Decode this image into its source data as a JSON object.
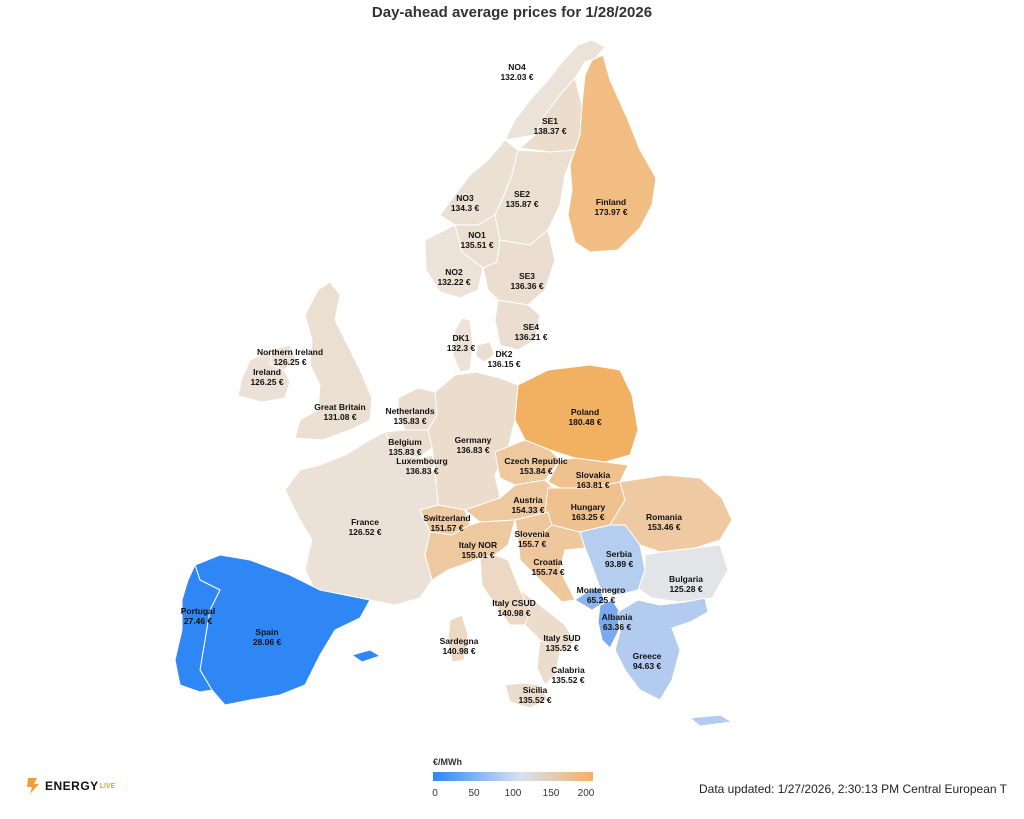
{
  "title": "Day-ahead average prices for 1/28/2026",
  "zones": [
    {
      "id": "no4",
      "name": "NO4",
      "price": "132.03 €",
      "color": "#ece3d8"
    },
    {
      "id": "se1",
      "name": "SE1",
      "price": "138.37 €",
      "color": "#ebdccb"
    },
    {
      "id": "finland",
      "name": "Finland",
      "price": "173.97 €",
      "color": "#f1bd82"
    },
    {
      "id": "no3",
      "name": "NO3",
      "price": "134.3 €",
      "color": "#ebe0d3"
    },
    {
      "id": "se2",
      "name": "SE2",
      "price": "135.87 €",
      "color": "#ebdfd1"
    },
    {
      "id": "no1",
      "name": "NO1",
      "price": "135.51 €",
      "color": "#ebdfd1"
    },
    {
      "id": "no2",
      "name": "NO2",
      "price": "132.22 €",
      "color": "#ece2d7"
    },
    {
      "id": "se3",
      "name": "SE3",
      "price": "136.36 €",
      "color": "#ebded0"
    },
    {
      "id": "se4",
      "name": "SE4",
      "price": "136.21 €",
      "color": "#ebded0"
    },
    {
      "id": "dk1",
      "name": "DK1",
      "price": "132.3 €",
      "color": "#ece2d7"
    },
    {
      "id": "dk2",
      "name": "DK2",
      "price": "136.15 €",
      "color": "#ebded0"
    },
    {
      "id": "northern-ireland",
      "name": "Northern Ireland",
      "price": "126.25 €",
      "color": "#ebe1d6"
    },
    {
      "id": "ireland",
      "name": "Ireland",
      "price": "126.25 €",
      "color": "#ebe1d6"
    },
    {
      "id": "great-britain",
      "name": "Great Britain",
      "price": "131.08 €",
      "color": "#ebdfd1"
    },
    {
      "id": "netherlands",
      "name": "Netherlands",
      "price": "135.83 €",
      "color": "#ebded0"
    },
    {
      "id": "belgium",
      "name": "Belgium",
      "price": "135.83 €",
      "color": "#ebded0"
    },
    {
      "id": "luxembourg",
      "name": "Luxembourg",
      "price": "136.83 €",
      "color": "#ebdccc"
    },
    {
      "id": "germany",
      "name": "Germany",
      "price": "136.83 €",
      "color": "#ebdccc"
    },
    {
      "id": "poland",
      "name": "Poland",
      "price": "180.48 €",
      "color": "#f2b063"
    },
    {
      "id": "czech-republic",
      "name": "Czech Republic",
      "price": "153.84 €",
      "color": "#eec89f"
    },
    {
      "id": "slovakia",
      "name": "Slovakia",
      "price": "163.81 €",
      "color": "#efc18f"
    },
    {
      "id": "austria",
      "name": "Austria",
      "price": "154.33 €",
      "color": "#eec89f"
    },
    {
      "id": "hungary",
      "name": "Hungary",
      "price": "163.25 €",
      "color": "#efc18f"
    },
    {
      "id": "romania",
      "name": "Romania",
      "price": "153.46 €",
      "color": "#eec9a1"
    },
    {
      "id": "switzerland",
      "name": "Switzerland",
      "price": "151.57 €",
      "color": "#eecaa4"
    },
    {
      "id": "france",
      "name": "France",
      "price": "126.52 €",
      "color": "#ebe1d6"
    },
    {
      "id": "italy-nor",
      "name": "Italy NOR",
      "price": "155.01 €",
      "color": "#eec89e"
    },
    {
      "id": "slovenia",
      "name": "Slovenia",
      "price": "155.7 €",
      "color": "#eec79c"
    },
    {
      "id": "croatia",
      "name": "Croatia",
      "price": "155.74 €",
      "color": "#eec79c"
    },
    {
      "id": "serbia",
      "name": "Serbia",
      "price": "93.89 €",
      "color": "#b5cdee"
    },
    {
      "id": "bulgaria",
      "name": "Bulgaria",
      "price": "125.28 €",
      "color": "#e3e4e8"
    },
    {
      "id": "montenegro",
      "name": "Montenegro",
      "price": "65.25 €",
      "color": "#8ab4ee"
    },
    {
      "id": "albania",
      "name": "Albania",
      "price": "63.36 €",
      "color": "#7aa9ef"
    },
    {
      "id": "greece",
      "name": "Greece",
      "price": "94.63 €",
      "color": "#b2cbee"
    },
    {
      "id": "italy-csud",
      "name": "Italy CSUD",
      "price": "140.98 €",
      "color": "#ecd8c3"
    },
    {
      "id": "italy-sud",
      "name": "Italy SUD",
      "price": "135.52 €",
      "color": "#ebdccc"
    },
    {
      "id": "sardegna",
      "name": "Sardegna",
      "price": "140.98 €",
      "color": "#ecd8c3"
    },
    {
      "id": "calabria",
      "name": "Calabria",
      "price": "135.52 €",
      "color": "#ebdccc"
    },
    {
      "id": "sicilia",
      "name": "Sicilia",
      "price": "135.52 €",
      "color": "#ebdccc"
    },
    {
      "id": "portugal",
      "name": "Portugal",
      "price": "27.46 €",
      "color": "#2f86f5"
    },
    {
      "id": "spain",
      "name": "Spain",
      "price": "28.06 €",
      "color": "#2f86f5"
    }
  ],
  "legend": {
    "title": "€/MWh",
    "ticks": [
      "0",
      "50",
      "100",
      "150",
      "200"
    ],
    "color_low": "#2f86f6",
    "color_mid": "#d7e2f0",
    "color_high": "#f2b165"
  },
  "logo": {
    "text": "ENERGY",
    "sub": "LIVE",
    "color": "#f0a030"
  },
  "updated": "Data updated: 1/27/2026, 2:30:13 PM Central European T"
}
